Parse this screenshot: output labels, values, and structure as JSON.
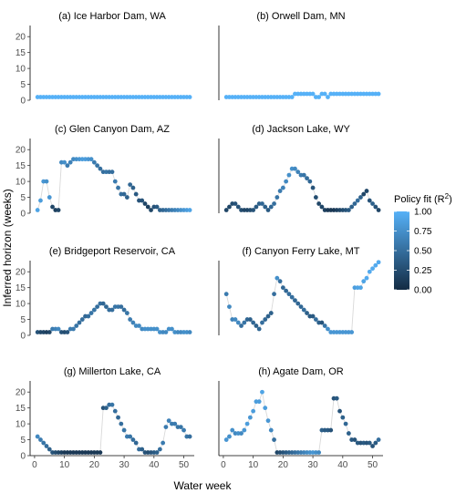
{
  "figure": {
    "ylabel": "Inferred horizon (weeks)",
    "xlabel": "Water week",
    "x_ticks": [
      0,
      10,
      20,
      30,
      40,
      50
    ],
    "y_ticks": [
      0,
      5,
      10,
      15,
      20
    ],
    "xlim": [
      -1.5,
      53.5
    ],
    "ylim": [
      0,
      23.5
    ],
    "legend": {
      "title_base": "Policy fit (R",
      "title_sup": "2",
      "title_end": ")",
      "tick_labels": [
        "1.00",
        "0.75",
        "0.50",
        "0.25",
        "0.00"
      ],
      "tick_values": [
        1.0,
        0.75,
        0.5,
        0.25,
        0.0
      ],
      "color_low": "#132B43",
      "color_high": "#56B1F7",
      "placement": "right"
    },
    "line_color": "#d9d9d9"
  },
  "chart_data": [
    {
      "type": "scatter",
      "title": "(a) Ice Harbor Dam, WA",
      "x_start": 1,
      "y": [
        1,
        1,
        1,
        1,
        1,
        1,
        1,
        1,
        1,
        1,
        1,
        1,
        1,
        1,
        1,
        1,
        1,
        1,
        1,
        1,
        1,
        1,
        1,
        1,
        1,
        1,
        1,
        1,
        1,
        1,
        1,
        1,
        1,
        1,
        1,
        1,
        1,
        1,
        1,
        1,
        1,
        1,
        1,
        1,
        1,
        1,
        1,
        1,
        1,
        1,
        1,
        1
      ],
      "fit": [
        1,
        1,
        1,
        1,
        1,
        1,
        1,
        1,
        1,
        1,
        1,
        1,
        1,
        1,
        1,
        1,
        1,
        1,
        1,
        1,
        1,
        1,
        1,
        1,
        1,
        1,
        1,
        1,
        1,
        1,
        1,
        1,
        1,
        1,
        1,
        1,
        1,
        1,
        1,
        1,
        1,
        1,
        1,
        1,
        1,
        1,
        1,
        1,
        1,
        1,
        1,
        1
      ]
    },
    {
      "type": "scatter",
      "title": "(b) Orwell Dam, MN",
      "x_start": 1,
      "y": [
        1,
        1,
        1,
        1,
        1,
        1,
        1,
        1,
        1,
        1,
        1,
        1,
        1,
        1,
        1,
        1,
        1,
        1,
        1,
        1,
        1,
        1,
        1,
        2,
        2,
        2,
        2,
        2,
        2,
        2,
        1,
        1,
        2,
        2,
        1,
        2,
        2,
        2,
        2,
        2,
        2,
        2,
        2,
        2,
        2,
        2,
        2,
        2,
        2,
        2,
        2,
        2
      ],
      "fit": [
        1,
        1,
        1,
        1,
        1,
        1,
        1,
        1,
        1,
        1,
        1,
        1,
        1,
        1,
        1,
        1,
        1,
        1,
        1,
        1,
        1,
        1,
        1,
        1,
        1,
        1,
        1,
        1,
        1,
        1,
        1,
        1,
        1,
        1,
        1,
        1,
        1,
        1,
        1,
        1,
        1,
        1,
        1,
        1,
        1,
        1,
        1,
        1,
        1,
        1,
        1,
        1
      ]
    },
    {
      "type": "scatter",
      "title": "(c) Glen Canyon Dam, AZ",
      "x_start": 1,
      "y": [
        1,
        4,
        10,
        10,
        5,
        2,
        1,
        1,
        16,
        16,
        15,
        16,
        17,
        17,
        17,
        17,
        17,
        17,
        17,
        16,
        15,
        14,
        13,
        13,
        13,
        13,
        10,
        8,
        6,
        6,
        5,
        9,
        8,
        6,
        4,
        4,
        3,
        2,
        1,
        2,
        2,
        1,
        1,
        1,
        1,
        1,
        1,
        1,
        1,
        1,
        1,
        1
      ],
      "fit": [
        0.9,
        0.85,
        0.8,
        0.75,
        0.8,
        0.2,
        0.15,
        0.2,
        0.7,
        0.75,
        0.6,
        0.65,
        0.7,
        0.75,
        0.8,
        0.85,
        0.85,
        0.8,
        0.75,
        0.6,
        0.55,
        0.5,
        0.5,
        0.55,
        0.5,
        0.5,
        0.6,
        0.55,
        0.5,
        0.45,
        0.4,
        0.45,
        0.4,
        0.35,
        0.3,
        0.3,
        0.2,
        0.15,
        0.2,
        0.3,
        0.35,
        0.4,
        0.45,
        0.5,
        0.55,
        0.6,
        0.65,
        0.7,
        0.75,
        0.8,
        0.85,
        0.9
      ]
    },
    {
      "type": "scatter",
      "title": "(d) Jackson Lake, WY",
      "x_start": 1,
      "y": [
        1,
        2,
        3,
        3,
        2,
        1,
        1,
        1,
        1,
        1,
        2,
        3,
        3,
        2,
        1,
        2,
        3,
        5,
        7,
        8,
        10,
        12,
        14,
        14,
        13,
        12,
        12,
        11,
        10,
        8,
        5,
        3,
        2,
        1,
        1,
        1,
        1,
        1,
        1,
        1,
        1,
        1,
        2,
        3,
        4,
        5,
        6,
        7,
        4,
        3,
        2,
        1
      ],
      "fit": [
        0.2,
        0.2,
        0.25,
        0.3,
        0.3,
        0.25,
        0.2,
        0.2,
        0.25,
        0.3,
        0.35,
        0.4,
        0.45,
        0.4,
        0.35,
        0.45,
        0.5,
        0.55,
        0.6,
        0.65,
        0.7,
        0.75,
        0.75,
        0.7,
        0.65,
        0.6,
        0.55,
        0.5,
        0.45,
        0.3,
        0.25,
        0.2,
        0.2,
        0.15,
        0.1,
        0.1,
        0.1,
        0.15,
        0.2,
        0.25,
        0.3,
        0.35,
        0.4,
        0.45,
        0.5,
        0.4,
        0.2,
        0.2,
        0.3,
        0.4,
        0.3,
        0.2
      ]
    },
    {
      "type": "scatter",
      "title": "(e) Bridgeport Reservoir, CA",
      "x_start": 1,
      "y": [
        1,
        1,
        1,
        1,
        1,
        2,
        2,
        2,
        1,
        1,
        1,
        2,
        2,
        3,
        4,
        5,
        6,
        6,
        7,
        8,
        9,
        10,
        10,
        9,
        8,
        8,
        9,
        9,
        9,
        8,
        7,
        5,
        4,
        3,
        3,
        2,
        2,
        2,
        2,
        2,
        2,
        1,
        1,
        1,
        2,
        2,
        1,
        1,
        1,
        1,
        1,
        1
      ],
      "fit": [
        0.3,
        0.2,
        0.2,
        0.15,
        0.2,
        0.6,
        0.65,
        0.7,
        0.3,
        0.25,
        0.3,
        0.6,
        0.6,
        0.55,
        0.5,
        0.5,
        0.45,
        0.5,
        0.55,
        0.55,
        0.5,
        0.5,
        0.45,
        0.45,
        0.5,
        0.5,
        0.55,
        0.55,
        0.5,
        0.5,
        0.55,
        0.6,
        0.65,
        0.7,
        0.7,
        0.7,
        0.75,
        0.75,
        0.75,
        0.75,
        0.75,
        0.75,
        0.7,
        0.7,
        0.75,
        0.75,
        0.75,
        0.7,
        0.7,
        0.75,
        0.75,
        0.7
      ]
    },
    {
      "type": "scatter",
      "title": "(f) Canyon Ferry Lake, MT",
      "x_start": 1,
      "y": [
        13,
        9,
        5,
        5,
        4,
        3,
        4,
        5,
        5,
        4,
        3,
        2,
        4,
        5,
        6,
        7,
        13,
        18,
        17,
        15,
        14,
        13,
        12,
        11,
        10,
        9,
        8,
        7,
        6,
        6,
        5,
        4,
        4,
        3,
        2,
        1,
        1,
        1,
        1,
        1,
        1,
        1,
        1,
        15,
        15,
        15,
        17,
        18,
        20,
        21,
        22,
        23
      ],
      "fit": [
        0.6,
        0.7,
        0.65,
        0.7,
        0.7,
        0.5,
        0.55,
        0.45,
        0.4,
        0.45,
        0.4,
        0.45,
        0.5,
        0.45,
        0.4,
        0.4,
        0.5,
        0.75,
        0.5,
        0.45,
        0.45,
        0.5,
        0.5,
        0.45,
        0.45,
        0.45,
        0.5,
        0.4,
        0.35,
        0.35,
        0.5,
        0.4,
        0.3,
        0.55,
        0.75,
        0.8,
        0.8,
        0.8,
        0.8,
        0.8,
        0.8,
        0.8,
        0.8,
        0.85,
        0.9,
        0.9,
        0.9,
        0.95,
        0.95,
        0.95,
        0.95,
        0.95
      ]
    },
    {
      "type": "scatter",
      "title": "(g) Millerton Lake, CA",
      "x_start": 1,
      "y": [
        6,
        5,
        4,
        3,
        2,
        1,
        1,
        1,
        1,
        1,
        1,
        1,
        1,
        1,
        1,
        1,
        1,
        1,
        1,
        1,
        1,
        1,
        15,
        15,
        16,
        16,
        14,
        12,
        10,
        8,
        6,
        6,
        5,
        4,
        2,
        2,
        1,
        1,
        1,
        1,
        1,
        2,
        4,
        9,
        11,
        10,
        10,
        9,
        9,
        8,
        6,
        6
      ],
      "fit": [
        0.7,
        0.6,
        0.55,
        0.5,
        0.4,
        0.3,
        0.25,
        0.2,
        0.15,
        0.1,
        0.1,
        0.1,
        0.1,
        0.1,
        0.1,
        0.1,
        0.1,
        0.1,
        0.1,
        0.1,
        0.1,
        0.1,
        0.3,
        0.4,
        0.5,
        0.55,
        0.5,
        0.45,
        0.5,
        0.55,
        0.6,
        0.55,
        0.5,
        0.45,
        0.5,
        0.4,
        0.3,
        0.25,
        0.3,
        0.35,
        0.4,
        0.5,
        0.6,
        0.6,
        0.65,
        0.6,
        0.6,
        0.55,
        0.55,
        0.6,
        0.55,
        0.5
      ]
    },
    {
      "type": "scatter",
      "title": "(h) Agate Dam, OR",
      "x_start": 1,
      "y": [
        5,
        6,
        8,
        7,
        7,
        7,
        8,
        10,
        12,
        14,
        17,
        17,
        20,
        15,
        11,
        8,
        5,
        1,
        1,
        1,
        1,
        1,
        1,
        1,
        1,
        1,
        1,
        1,
        1,
        1,
        1,
        1,
        8,
        8,
        8,
        8,
        18,
        18,
        14,
        12,
        10,
        7,
        5,
        5,
        4,
        4,
        4,
        4,
        4,
        3,
        4,
        5
      ],
      "fit": [
        0.8,
        0.75,
        0.75,
        0.7,
        0.75,
        0.7,
        0.8,
        0.85,
        0.8,
        0.85,
        0.85,
        0.85,
        0.9,
        0.85,
        0.8,
        0.7,
        0.5,
        0.2,
        0.25,
        0.3,
        0.35,
        0.4,
        0.45,
        0.5,
        0.55,
        0.6,
        0.65,
        0.7,
        0.75,
        0.8,
        0.75,
        0.7,
        0.4,
        0.35,
        0.35,
        0.3,
        0.3,
        0.35,
        0.3,
        0.4,
        0.45,
        0.4,
        0.35,
        0.3,
        0.35,
        0.3,
        0.35,
        0.3,
        0.35,
        0.3,
        0.35,
        0.5
      ]
    }
  ]
}
